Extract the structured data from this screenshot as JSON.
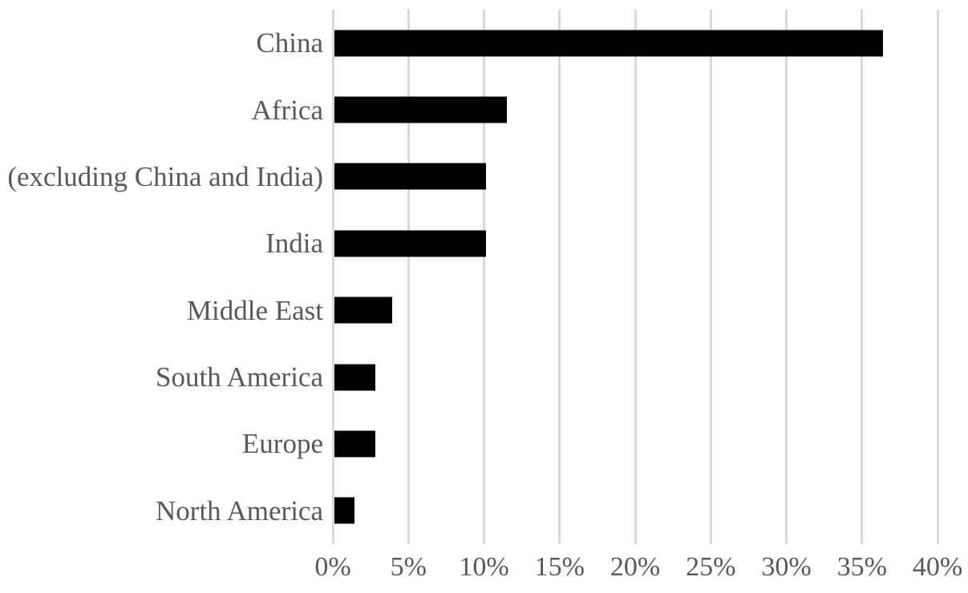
{
  "page": {
    "background": "#ffffff"
  },
  "chart_data": {
    "type": "bar",
    "orientation": "horizontal",
    "title": "",
    "categories": [
      "China",
      "Africa",
      "(excluding China and India)",
      "India",
      "Middle East",
      "South America",
      "Europe",
      "North America"
    ],
    "values": [
      36.3,
      11.4,
      10.0,
      10.0,
      3.8,
      2.7,
      2.7,
      1.3
    ],
    "value_unit": "%",
    "x_tick_labels": [
      "0%",
      "5%",
      "10%",
      "15%",
      "20%",
      "25%",
      "30%",
      "35%",
      "40%"
    ],
    "xlim": [
      0,
      40
    ],
    "grid": "vertical",
    "legend": "none",
    "colors": {
      "bar": "#000000",
      "gridline": "#d9d9d9",
      "text": "#595959"
    }
  }
}
